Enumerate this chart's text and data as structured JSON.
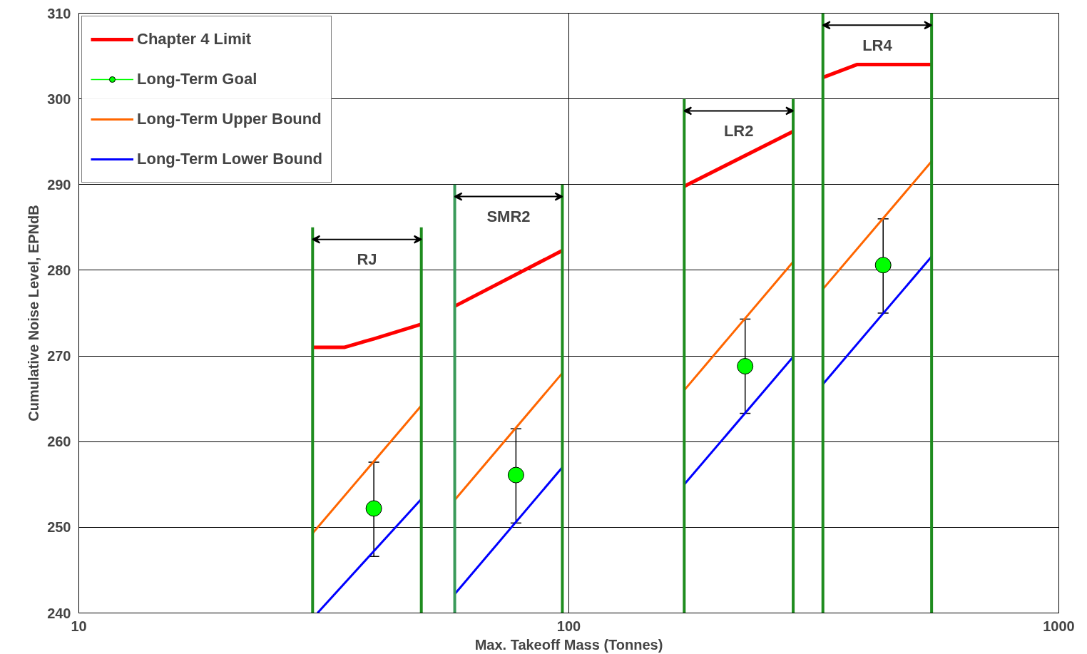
{
  "chart_data": {
    "type": "line",
    "xlabel": "Max. Takeoff Mass (Tonnes)",
    "ylabel": "Cumulative Noise Level, EPNdB",
    "log": "x",
    "xlim": [
      10,
      1000
    ],
    "xticks": [
      10,
      100,
      1000
    ],
    "ylim": [
      240,
      310
    ],
    "yticks": [
      240,
      250,
      260,
      270,
      280,
      290,
      300,
      310
    ],
    "grid": true,
    "legend": "top left",
    "series": [
      {
        "name": "Chapter 4 Limit",
        "color": "#ff0000",
        "x": [
          30,
          34.8,
          40,
          50,
          54,
          58.5,
          97,
          130,
          172,
          287,
          310,
          330,
          387,
          550
        ],
        "values": [
          271,
          271,
          272,
          273.7,
          null,
          275.8,
          282.3,
          null,
          289.8,
          296.2,
          null,
          302.5,
          304,
          304
        ]
      },
      {
        "name": "Long-Term Goal",
        "color": "#00ff00",
        "type": "scatter",
        "marker": "circle",
        "x": [
          40,
          78,
          229,
          438
        ],
        "values": [
          252.2,
          256.1,
          268.8,
          280.6
        ],
        "errors": [
          [
            246.6,
            257.6
          ],
          [
            250.5,
            261.5
          ],
          [
            263.3,
            274.3
          ],
          [
            275,
            286
          ]
        ]
      },
      {
        "name": "Long-Term Upper Bound",
        "color": "#ff6600",
        "x": [
          30,
          50,
          54,
          58.5,
          97,
          130,
          172,
          287,
          310,
          330,
          550
        ],
        "values": [
          249.3,
          264.2,
          null,
          253.2,
          268,
          null,
          266,
          281,
          null,
          277.8,
          292.7
        ]
      },
      {
        "name": "Long-Term Lower Bound",
        "color": "#0000ff",
        "x": [
          30.7,
          50,
          54,
          58.5,
          97,
          130,
          172,
          287,
          310,
          330,
          550
        ],
        "values": [
          240,
          253.3,
          null,
          242.2,
          257,
          null,
          255,
          269.9,
          null,
          266.7,
          281.6
        ]
      },
      {
        "color": "#1e8c1e",
        "x": [
          30,
          30
        ],
        "values": [
          240,
          285
        ]
      },
      {
        "color": "#1e8c1e",
        "x": [
          50,
          50
        ],
        "values": [
          240,
          285
        ]
      },
      {
        "color": "#3a9a5a",
        "x": [
          58.5,
          58.5
        ],
        "values": [
          240,
          290
        ]
      },
      {
        "color": "#1e8c1e",
        "x": [
          97,
          97
        ],
        "values": [
          240,
          290
        ]
      },
      {
        "color": "#1e8c1e",
        "x": [
          172,
          172
        ],
        "values": [
          240,
          300
        ]
      },
      {
        "color": "#1e8c1e",
        "x": [
          287,
          287
        ],
        "values": [
          240,
          300
        ]
      },
      {
        "color": "#1e8c1e",
        "x": [
          330,
          330
        ],
        "values": [
          240,
          310
        ]
      },
      {
        "color": "#1e8c1e",
        "x": [
          550,
          550
        ],
        "values": [
          240,
          310
        ]
      }
    ],
    "annotations": [
      "RJ",
      "SMR2",
      "LR2",
      "LR4"
    ]
  }
}
